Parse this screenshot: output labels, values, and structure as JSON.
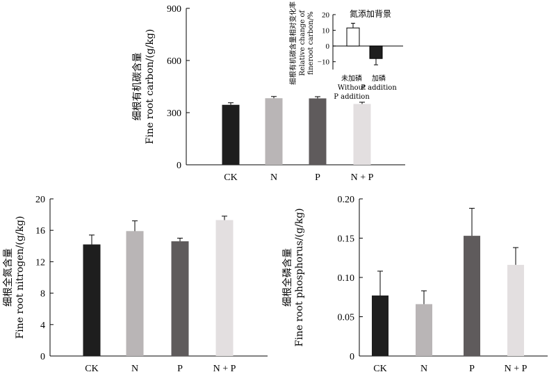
{
  "colors": {
    "CK": "#1e1e1e",
    "N": "#b9b5b6",
    "P": "#5f5b5c",
    "N + P": "#e3dfe0",
    "inset_without": "#ffffff",
    "inset_with": "#1e1e1e"
  },
  "chart_data": [
    {
      "type": "bar",
      "title": "",
      "ylabel_cn": "细根有机碳含量",
      "ylabel_en": "Fine root carbon/(g/kg)",
      "categories": [
        "CK",
        "N",
        "P",
        "N + P"
      ],
      "values": [
        345,
        383,
        382,
        350
      ],
      "errors": [
        12,
        10,
        10,
        10
      ],
      "ylim": [
        0,
        900
      ],
      "yticks": [
        "0",
        "300",
        "600",
        "900"
      ],
      "ytick_values": [
        0,
        300,
        600,
        900
      ],
      "inset": {
        "type": "bar",
        "title": "氮添加背景",
        "ylabel_cn": "细根有机碳含量相对变化率",
        "ylabel_en_1": "Relative change of",
        "ylabel_en_2": "fineroot carbon/%",
        "categories": [
          {
            "cn": "未加磷",
            "en_1": "Without",
            "en_2": "P addition"
          },
          {
            "cn": "加磷",
            "en_1": "P addition",
            "en_2": ""
          }
        ],
        "values": [
          11.5,
          -8
        ],
        "errors": [
          3,
          4
        ],
        "ylim": [
          -15,
          20
        ],
        "yticks": [
          "−10",
          "0",
          "10",
          "20"
        ],
        "ytick_values": [
          -10,
          0,
          10,
          20
        ]
      }
    },
    {
      "type": "bar",
      "title": "",
      "ylabel_cn": "细根全氮含量",
      "ylabel_en": "Fine root nitrogen/(g/kg)",
      "categories": [
        "CK",
        "N",
        "P",
        "N + P"
      ],
      "values": [
        14.2,
        15.9,
        14.6,
        17.3
      ],
      "errors": [
        1.2,
        1.3,
        0.4,
        0.5
      ],
      "ylim": [
        0,
        20
      ],
      "yticks": [
        "0",
        "4",
        "8",
        "12",
        "16",
        "20"
      ],
      "ytick_values": [
        0,
        4,
        8,
        12,
        16,
        20
      ]
    },
    {
      "type": "bar",
      "title": "",
      "ylabel_cn": "细根全磷含量",
      "ylabel_en": "Fine root phosphorus/(g/kg)",
      "categories": [
        "CK",
        "N",
        "P",
        "N + P"
      ],
      "values": [
        0.077,
        0.066,
        0.153,
        0.116
      ],
      "errors": [
        0.031,
        0.017,
        0.035,
        0.022
      ],
      "ylim": [
        0,
        0.2
      ],
      "yticks": [
        "0",
        "0.05",
        "0.10",
        "0.15",
        "0.20"
      ],
      "ytick_values": [
        0,
        0.05,
        0.1,
        0.15,
        0.2
      ]
    }
  ]
}
